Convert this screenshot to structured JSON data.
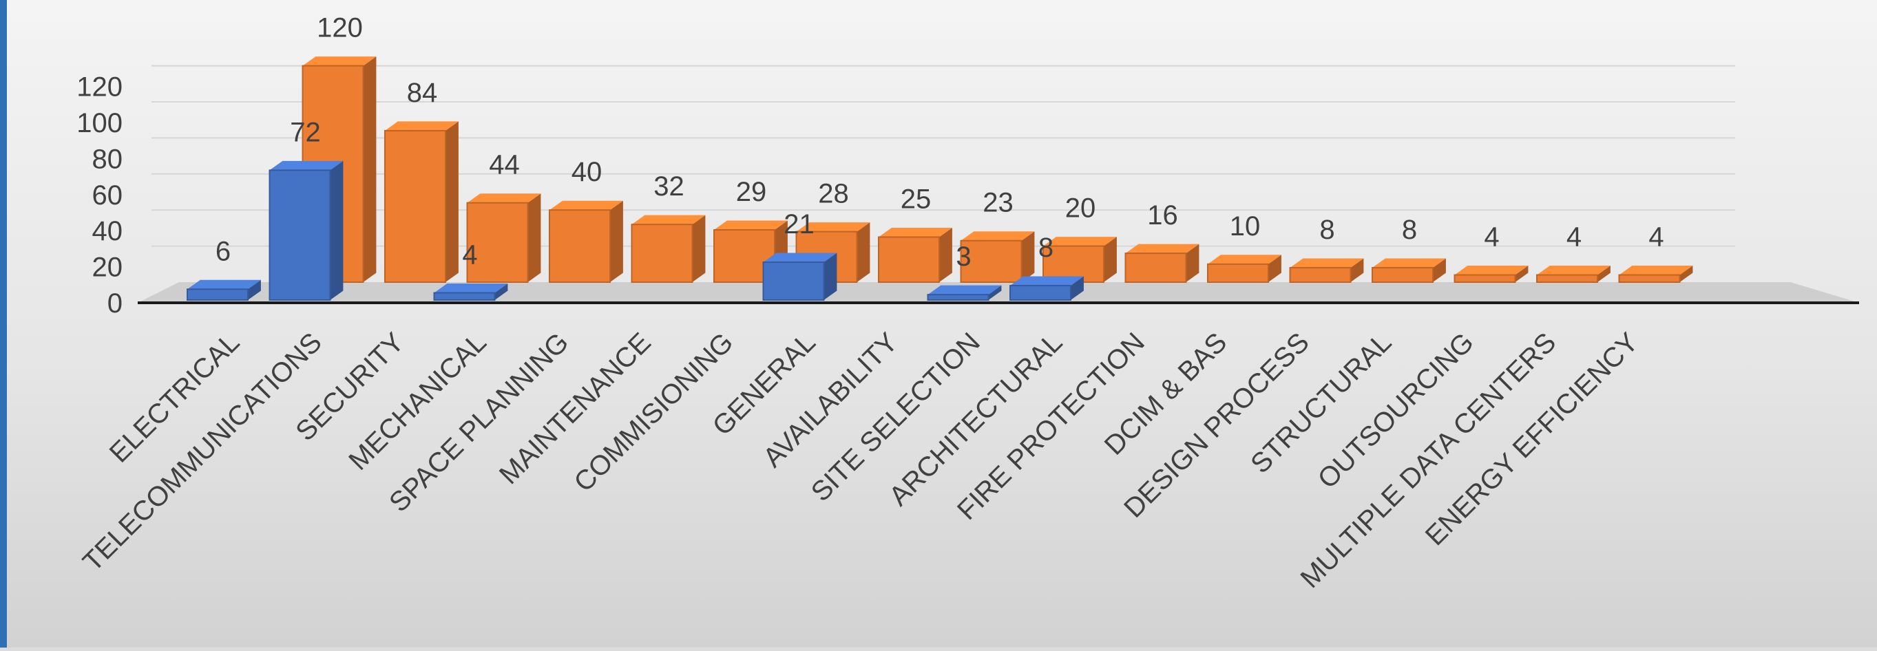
{
  "chart_data": {
    "type": "bar",
    "categories": [
      "ELECTRICAL",
      "TELECOMMUNICATIONS",
      "SECURITY",
      "MECHANICAL",
      "SPACE PLANNING",
      "MAINTENANCE",
      "COMMISIONING",
      "GENERAL",
      "AVAILABILITY",
      "SITE SELECTION",
      "ARCHITECTURAL",
      "FIRE PROTECTION",
      "DCIM & BAS",
      "DESIGN PROCESS",
      "STRUCTURAL",
      "OUTSOURCING",
      "MULTIPLE DATA CENTERS",
      "ENERGY EFFICIENCY"
    ],
    "series": [
      {
        "color": "#4472c4",
        "values": [
          6,
          72,
          null,
          4,
          null,
          null,
          null,
          21,
          null,
          3,
          8,
          null,
          null,
          null,
          null,
          null,
          null,
          null
        ]
      },
      {
        "color": "#ed7d31",
        "values": [
          null,
          120,
          84,
          44,
          40,
          32,
          29,
          28,
          25,
          23,
          20,
          16,
          10,
          8,
          8,
          4,
          4,
          4
        ]
      }
    ],
    "y_ticks": [
      "0",
      "20",
      "40",
      "60",
      "80",
      "100",
      "120"
    ],
    "ylim": [
      0,
      120
    ],
    "grid": true,
    "style": "3d-clustered-column"
  }
}
